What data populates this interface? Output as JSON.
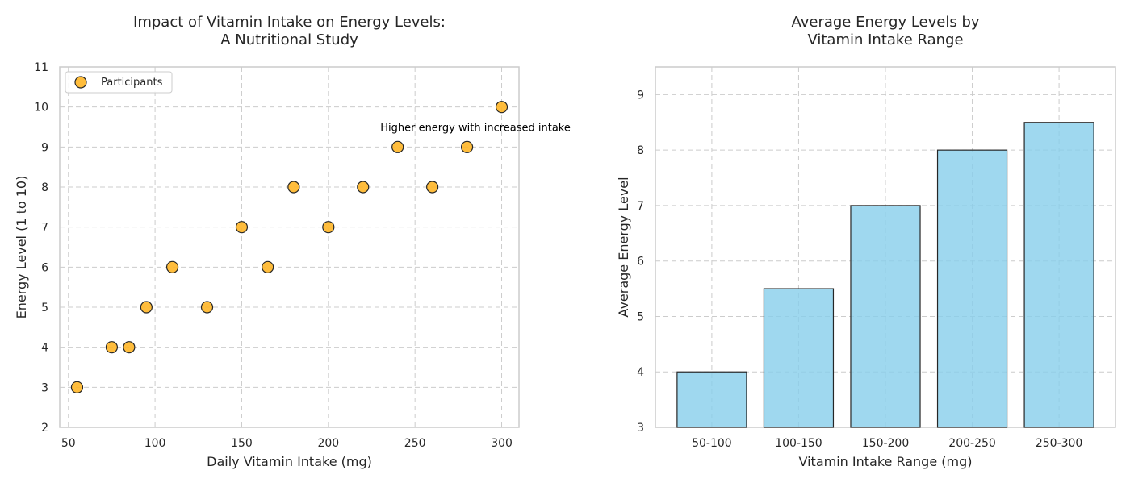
{
  "chart_data": [
    {
      "type": "scatter",
      "title_lines": [
        "Impact of Vitamin Intake on Energy Levels:",
        "A Nutritional Study"
      ],
      "xlabel": "Daily Vitamin Intake (mg)",
      "ylabel": "Energy Level (1 to 10)",
      "xlim": [
        45,
        310
      ],
      "ylim": [
        2,
        11
      ],
      "xticks": [
        50,
        100,
        150,
        200,
        250,
        300
      ],
      "yticks": [
        2,
        3,
        4,
        5,
        6,
        7,
        8,
        9,
        10,
        11
      ],
      "grid": true,
      "legend_position": "top-left",
      "series": [
        {
          "name": "Participants",
          "color": "#ffb627",
          "edge_color": "#262626",
          "points": [
            [
              55,
              3
            ],
            [
              75,
              4
            ],
            [
              85,
              4
            ],
            [
              95,
              5
            ],
            [
              110,
              6
            ],
            [
              130,
              5
            ],
            [
              150,
              7
            ],
            [
              165,
              6
            ],
            [
              180,
              8
            ],
            [
              200,
              7
            ],
            [
              220,
              8
            ],
            [
              240,
              9
            ],
            [
              260,
              8
            ],
            [
              280,
              9
            ],
            [
              300,
              10
            ]
          ]
        }
      ],
      "annotation": {
        "text": "Higher energy with increased intake",
        "x": 230,
        "y": 9.5
      }
    },
    {
      "type": "bar",
      "title_lines": [
        "Average Energy Levels by",
        "Vitamin Intake Range"
      ],
      "xlabel": "Vitamin Intake Range (mg)",
      "ylabel": "Average Energy Level",
      "categories": [
        "50-100",
        "100-150",
        "150-200",
        "200-250",
        "250-300"
      ],
      "values": [
        4,
        5.5,
        7,
        8,
        8.5
      ],
      "ylim": [
        3,
        9.5
      ],
      "yticks": [
        3,
        4,
        5,
        6,
        7,
        8,
        9
      ],
      "grid": true,
      "bar_color": "#87ceeb",
      "edge_color": "#262626"
    }
  ]
}
